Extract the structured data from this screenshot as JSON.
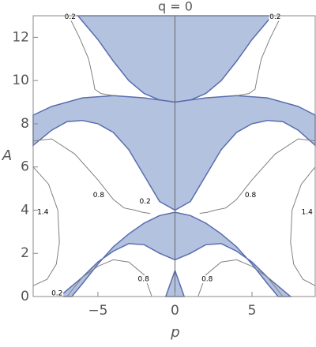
{
  "chart_data": {
    "type": "region",
    "title": "q = 0",
    "xlabel": "p",
    "ylabel": "A",
    "xlim": [
      -9.2,
      9.1
    ],
    "ylim": [
      0,
      13
    ],
    "xticks": [
      {
        "value": -5,
        "label": "−5"
      },
      0,
      5
    ],
    "yticks": [
      0,
      2,
      4,
      6,
      8,
      10,
      12
    ],
    "region_color": "#b3c2de",
    "edge_color": "#5a6db0",
    "contour_color": "#808080",
    "regions": [
      {
        "x": [
          -6.3,
          -5,
          -4,
          -3,
          -2,
          -1,
          0,
          1,
          2,
          3,
          4,
          5,
          6.3
        ],
        "y": [
          13,
          11.9,
          10.9,
          10,
          9.4,
          9.1,
          9,
          9.1,
          9.4,
          10,
          10.9,
          11.9,
          13
        ]
      },
      {
        "x": [
          -9.2,
          -8,
          -6,
          -4,
          -2,
          0,
          2,
          4,
          6,
          8,
          9.1,
          9.1,
          8,
          7,
          6,
          5,
          4,
          3,
          2,
          1,
          0,
          -1,
          -2,
          -3,
          -4,
          -5,
          -6,
          -7,
          -8,
          -9.2
        ],
        "y": [
          8.4,
          8.8,
          9.2,
          9.3,
          9.2,
          9,
          9.2,
          9.3,
          9.2,
          8.8,
          8.4,
          7,
          7.7,
          8.1,
          8.15,
          8,
          7.6,
          6.8,
          5.6,
          4.4,
          4,
          4.4,
          5.6,
          6.8,
          7.6,
          8,
          8.15,
          8.1,
          7.7,
          7
        ]
      },
      {
        "x": [
          -6.7,
          -6,
          -5,
          -4,
          -3,
          -2,
          -1,
          0,
          1,
          2,
          3,
          4,
          5,
          6,
          6.7,
          7.5,
          6,
          5,
          4,
          3,
          2,
          1,
          0,
          -1,
          -2,
          -3,
          -4,
          -5,
          -6,
          -7.5
        ],
        "y": [
          0,
          0.6,
          1.5,
          2.3,
          2.9,
          3.4,
          3.75,
          3.9,
          3.75,
          3.4,
          2.9,
          2.3,
          1.5,
          0.6,
          0,
          0,
          0.9,
          1.6,
          2.1,
          2.45,
          2.4,
          2,
          1.7,
          2,
          2.4,
          2.45,
          2.1,
          1.6,
          0.9,
          0
        ]
      },
      {
        "x": [
          -0.6,
          0,
          0.6
        ],
        "y": [
          0,
          1.2,
          0
        ]
      }
    ],
    "contours": [
      {
        "x": [
          -6.9,
          -6.2,
          -5.6,
          -5.3,
          -5.2,
          -4.8,
          -4
        ],
        "y": [
          13,
          12,
          11,
          10,
          9.6,
          9.4,
          9.3
        ]
      },
      {
        "x": [
          6.9,
          6.2,
          5.6,
          5.3,
          5.2,
          4.8,
          4
        ],
        "y": [
          13,
          12,
          11,
          10,
          9.6,
          9.4,
          9.3
        ]
      },
      {
        "x": [
          -9.2,
          -8,
          -6.5,
          -5,
          -4,
          -3.3,
          -2.6,
          -2.1,
          -1.6
        ],
        "y": [
          7.2,
          7.3,
          6.6,
          5.4,
          4.5,
          4.1,
          4,
          3.9,
          3.85
        ]
      },
      {
        "x": [
          9.1,
          8,
          6.5,
          5,
          4,
          3.3,
          2.6,
          2.1,
          1.6
        ],
        "y": [
          7.2,
          7.3,
          6.6,
          5.4,
          4.5,
          4.1,
          4,
          3.9,
          3.85
        ]
      },
      {
        "x": [
          -9.2,
          -8.2,
          -7.6,
          -7.5,
          -7.7,
          -8.3,
          -9.2
        ],
        "y": [
          6,
          5.2,
          4,
          2.5,
          1.5,
          0.8,
          0.5
        ]
      },
      {
        "x": [
          9.1,
          8.2,
          7.6,
          7.5,
          7.7,
          8.3,
          9.1
        ],
        "y": [
          6,
          5.2,
          4,
          2.5,
          1.5,
          0.8,
          0.5
        ]
      },
      {
        "x": [
          -7,
          -6,
          -5,
          -4,
          -3,
          -2,
          -1.5
        ],
        "y": [
          0,
          0.9,
          1.4,
          1.7,
          1.6,
          1,
          0
        ]
      },
      {
        "x": [
          7,
          6,
          5,
          4,
          3,
          2,
          1.5
        ],
        "y": [
          0,
          0.9,
          1.4,
          1.7,
          1.6,
          1,
          0
        ]
      }
    ],
    "annotations": [
      {
        "text": "0.2",
        "x": -6.8,
        "y": 12.95
      },
      {
        "text": "0.2",
        "x": 6.5,
        "y": 12.95
      },
      {
        "text": "0.8",
        "x": -4.95,
        "y": 4.7
      },
      {
        "text": "0.2",
        "x": -1.94,
        "y": 4.4
      },
      {
        "text": "0.8",
        "x": 4.9,
        "y": 4.7
      },
      {
        "text": "1.4",
        "x": -8.57,
        "y": 3.9
      },
      {
        "text": "1.4",
        "x": 8.57,
        "y": 3.9
      },
      {
        "text": "0.8",
        "x": -2.04,
        "y": 0.8
      },
      {
        "text": "0.8",
        "x": 2.09,
        "y": 0.8
      },
      {
        "text": "0.2",
        "x": -7.65,
        "y": 0.15
      }
    ]
  }
}
